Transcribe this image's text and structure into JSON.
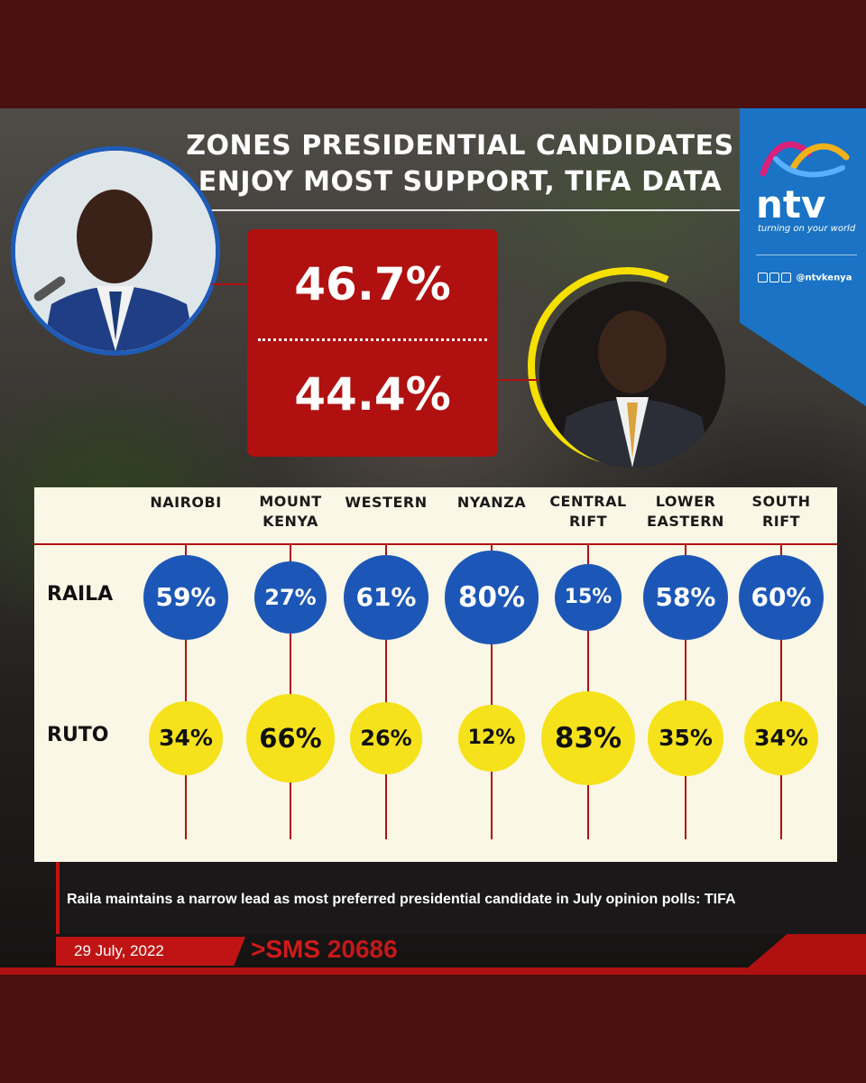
{
  "title": {
    "line1": "ZONES PRESIDENTIAL CANDIDATES",
    "line2": "ENJOY MOST SUPPORT, TIFA DATA"
  },
  "logo": {
    "name": "ntv",
    "tagline": "turning on your world",
    "handle": "@ntvkenya",
    "icons": [
      "facebook-icon",
      "twitter-icon",
      "instagram-icon"
    ]
  },
  "totals": {
    "raila": "46.7%",
    "ruto": "44.4%"
  },
  "rows": {
    "raila_label": "RAILA",
    "ruto_label": "RUTO"
  },
  "chart_data": {
    "type": "bubble",
    "title": "ZONES PRESIDENTIAL CANDIDATES ENJOY MOST SUPPORT, TIFA DATA",
    "categories": [
      [
        "NAIROBI"
      ],
      [
        "MOUNT",
        "KENYA"
      ],
      [
        "WESTERN"
      ],
      [
        "NYANZA"
      ],
      [
        "CENTRAL",
        "RIFT"
      ],
      [
        "LOWER",
        "EASTERN"
      ],
      [
        "SOUTH",
        "RIFT"
      ]
    ],
    "series": [
      {
        "name": "RAILA",
        "values": [
          59,
          27,
          61,
          80,
          15,
          58,
          60
        ],
        "labels": [
          "59%",
          "27%",
          "61%",
          "80%",
          "15%",
          "58%",
          "60%"
        ],
        "color": "#1c57b7"
      },
      {
        "name": "RUTO",
        "values": [
          34,
          66,
          26,
          12,
          83,
          35,
          34
        ],
        "labels": [
          "34%",
          "66%",
          "26%",
          "12%",
          "83%",
          "35%",
          "34%"
        ],
        "color": "#f5e21a"
      }
    ],
    "totals": {
      "RAILA": 46.7,
      "RUTO": 44.4
    }
  },
  "caption": "Raila maintains a narrow lead as most preferred presidential candidate in July opinion polls: TIFA",
  "date": "29 July, 2022",
  "sms": {
    "prefix": ">SMS ",
    "number": "20686"
  },
  "colors": {
    "raila_blue": "#1c57b7",
    "ruto_yellow": "#f5e21a",
    "accent_red": "#b01010",
    "frame": "#4a0f0f"
  }
}
